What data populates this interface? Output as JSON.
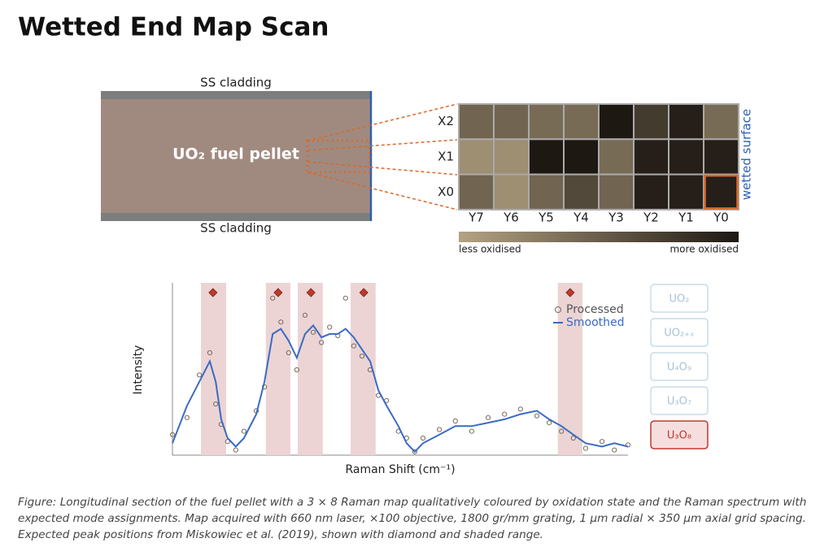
{
  "header": {
    "title": "Wetted End Map Scan"
  },
  "section": {
    "cladding_top": "SS cladding",
    "cladding_bottom": "SS cladding",
    "pellet_label": "UO₂ fuel pellet"
  },
  "map": {
    "rows": [
      "X2",
      "X1",
      "X0"
    ],
    "columns": [
      "Y7",
      "Y6",
      "Y5",
      "Y4",
      "Y3",
      "Y2",
      "Y1",
      "Y0"
    ],
    "levels": [
      [
        0.45,
        0.45,
        0.4,
        0.4,
        1.0,
        0.75,
        0.95,
        0.4
      ],
      [
        0.15,
        0.15,
        1.0,
        1.0,
        0.4,
        0.95,
        0.95,
        0.95
      ],
      [
        0.45,
        0.15,
        0.45,
        0.65,
        0.45,
        0.95,
        0.95,
        0.95
      ]
    ],
    "highlight": {
      "row": 2,
      "column": 7
    },
    "colorbar": {
      "min_label": "less oxidised",
      "max_label": "more oxidised",
      "colors": [
        "#b4a383",
        "#1e1813"
      ]
    },
    "surface_label": "wetted surface"
  },
  "chart_data": {
    "type": "line",
    "xlabel": "Raman Shift (cm⁻¹)",
    "ylabel": "Intensity",
    "xlim": [
      0,
      100
    ],
    "ylim": [
      0,
      1
    ],
    "x": [
      0,
      3.2,
      5.9,
      8.2,
      9.5,
      10.7,
      12.1,
      13.9,
      15.7,
      18.4,
      20.2,
      22,
      23.8,
      25.5,
      27.3,
      29.1,
      30.9,
      32.7,
      34.5,
      36.3,
      38,
      39.8,
      41.6,
      43.4,
      45.2,
      47,
      49.6,
      51.4,
      53.2,
      55,
      58.6,
      62.1,
      65.7,
      69.3,
      72.9,
      76.4,
      80,
      82.7,
      85.4,
      88,
      90.7,
      94.3,
      97,
      100
    ],
    "series": [
      {
        "name": "Processed",
        "color": "#7a6a5a",
        "values": [
          0.12,
          0.22,
          0.47,
          0.6,
          0.3,
          0.18,
          0.08,
          0.03,
          0.14,
          0.26,
          0.4,
          0.92,
          0.78,
          0.6,
          0.5,
          0.82,
          0.72,
          0.66,
          0.75,
          0.7,
          0.92,
          0.64,
          0.58,
          0.5,
          0.35,
          0.32,
          0.14,
          0.1,
          0.02,
          0.1,
          0.15,
          0.2,
          0.14,
          0.22,
          0.24,
          0.27,
          0.23,
          0.19,
          0.14,
          0.1,
          0.04,
          0.08,
          0.03,
          0.06
        ]
      },
      {
        "name": "Smoothed",
        "color": "#3a6bc4",
        "values": [
          0.07,
          0.29,
          0.43,
          0.55,
          0.43,
          0.21,
          0.1,
          0.05,
          0.1,
          0.24,
          0.43,
          0.71,
          0.74,
          0.67,
          0.57,
          0.71,
          0.76,
          0.69,
          0.71,
          0.71,
          0.74,
          0.69,
          0.62,
          0.55,
          0.38,
          0.29,
          0.17,
          0.07,
          0.02,
          0.07,
          0.12,
          0.17,
          0.17,
          0.19,
          0.21,
          0.24,
          0.26,
          0.21,
          0.17,
          0.12,
          0.07,
          0.05,
          0.07,
          0.05
        ]
      }
    ],
    "bands": [
      {
        "range": [
          6.25,
          11.8
        ],
        "peak": 8.9
      },
      {
        "range": [
          20.5,
          25.9
        ],
        "peak": 23.2
      },
      {
        "range": [
          27.5,
          33
        ],
        "peak": 30.4
      },
      {
        "range": [
          39.1,
          44.6
        ],
        "peak": 42
      },
      {
        "range": [
          84.6,
          90
        ],
        "peak": 87.3
      }
    ],
    "band_color": "#ecd4d4",
    "peak_color": "#c0392b"
  },
  "phases": {
    "items": [
      "UO₂",
      "UO₂₊ₓ",
      "U₄O₉",
      "U₃O₇",
      "U₃O₈"
    ],
    "selected": 4
  },
  "caption": "Figure: Longitudinal section of the fuel pellet with a 3 × 8 Raman map qualitatively coloured by oxidation state and the Raman spectrum with expected mode assignments. Map acquired with 660 nm laser, ×100 objective, 1800 gr/mm grating, 1 µm radial × 350 µm axial grid spacing. Expected peak positions from Miskowiec et al. (2019), shown with diamond and shaded range."
}
